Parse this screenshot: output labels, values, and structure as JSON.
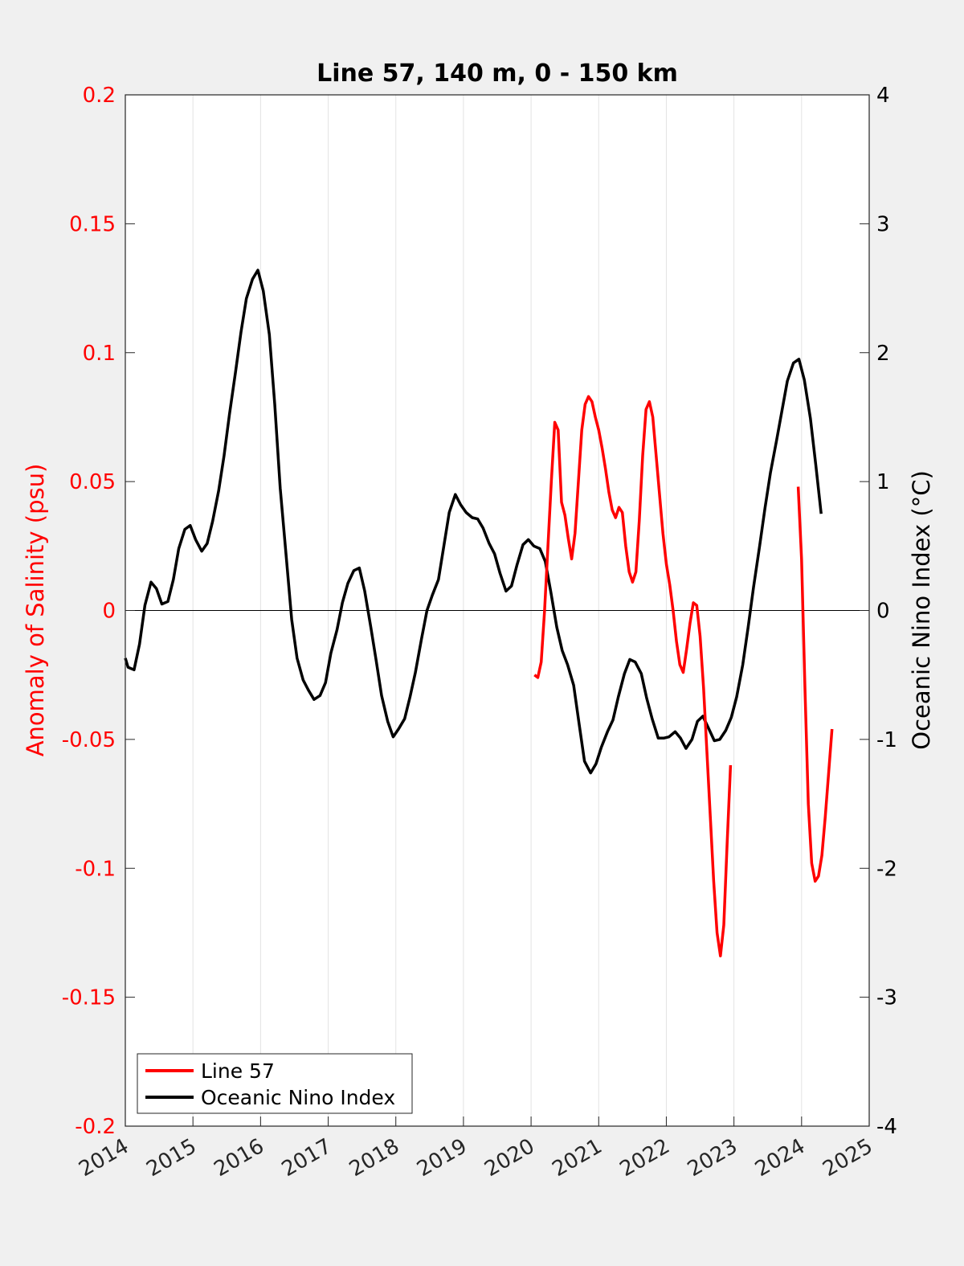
{
  "chart_data": {
    "type": "line",
    "title": "Line 57, 140 m, 0 - 150 km",
    "xlabel": "",
    "y_left_label": "Anomaly of Salinity (psu)",
    "y_right_label": "Oceanic Nino Index (°C)",
    "xlim": [
      2014,
      2025
    ],
    "y_left_lim": [
      -0.2,
      0.2
    ],
    "y_right_lim": [
      -4,
      4
    ],
    "x_ticks": [
      "2014",
      "2015",
      "2016",
      "2017",
      "2018",
      "2019",
      "2020",
      "2021",
      "2022",
      "2023",
      "2024",
      "2025"
    ],
    "y_left_ticks": [
      "-0.2",
      "-0.15",
      "-0.1",
      "-0.05",
      "0",
      "0.05",
      "0.1",
      "0.15",
      "0.2"
    ],
    "y_right_ticks": [
      "-4",
      "-3",
      "-2",
      "-1",
      "0",
      "1",
      "2",
      "3",
      "4"
    ],
    "x_grid": true,
    "zero_line": true,
    "legend_position": "bottom-left",
    "colors": {
      "line57": "#ff0000",
      "oni": "#000000",
      "left_axis": "#ff0000",
      "right_axis": "#000000"
    },
    "series": [
      {
        "name": "Line 57",
        "axis": "left",
        "segments": [
          [
            [
              2020.05,
              -0.025
            ],
            [
              2020.1,
              -0.026
            ],
            [
              2020.15,
              -0.02
            ],
            [
              2020.2,
              0.0
            ],
            [
              2020.25,
              0.025
            ],
            [
              2020.3,
              0.05
            ],
            [
              2020.35,
              0.073
            ],
            [
              2020.4,
              0.07
            ],
            [
              2020.45,
              0.042
            ],
            [
              2020.5,
              0.037
            ],
            [
              2020.55,
              0.028
            ],
            [
              2020.6,
              0.02
            ],
            [
              2020.65,
              0.03
            ],
            [
              2020.7,
              0.05
            ],
            [
              2020.75,
              0.07
            ],
            [
              2020.8,
              0.08
            ],
            [
              2020.85,
              0.083
            ],
            [
              2020.9,
              0.081
            ],
            [
              2020.95,
              0.075
            ],
            [
              2021.0,
              0.07
            ],
            [
              2021.05,
              0.063
            ],
            [
              2021.1,
              0.055
            ],
            [
              2021.15,
              0.046
            ],
            [
              2021.2,
              0.039
            ],
            [
              2021.25,
              0.036
            ],
            [
              2021.3,
              0.04
            ],
            [
              2021.35,
              0.038
            ],
            [
              2021.4,
              0.025
            ],
            [
              2021.45,
              0.015
            ],
            [
              2021.5,
              0.011
            ],
            [
              2021.55,
              0.015
            ],
            [
              2021.6,
              0.035
            ],
            [
              2021.65,
              0.06
            ],
            [
              2021.7,
              0.078
            ],
            [
              2021.75,
              0.081
            ],
            [
              2021.8,
              0.075
            ],
            [
              2021.85,
              0.06
            ],
            [
              2021.9,
              0.045
            ],
            [
              2021.95,
              0.03
            ],
            [
              2022.0,
              0.018
            ],
            [
              2022.05,
              0.01
            ],
            [
              2022.1,
              0.0
            ],
            [
              2022.15,
              -0.012
            ],
            [
              2022.2,
              -0.021
            ],
            [
              2022.25,
              -0.024
            ],
            [
              2022.3,
              -0.015
            ],
            [
              2022.35,
              -0.005
            ],
            [
              2022.4,
              0.003
            ],
            [
              2022.45,
              0.002
            ],
            [
              2022.5,
              -0.01
            ],
            [
              2022.55,
              -0.03
            ],
            [
              2022.6,
              -0.055
            ],
            [
              2022.65,
              -0.08
            ],
            [
              2022.7,
              -0.105
            ],
            [
              2022.75,
              -0.125
            ],
            [
              2022.8,
              -0.134
            ],
            [
              2022.85,
              -0.122
            ],
            [
              2022.9,
              -0.09
            ],
            [
              2022.95,
              -0.06
            ]
          ],
          [
            [
              2023.95,
              0.048
            ],
            [
              2024.0,
              0.02
            ],
            [
              2024.05,
              -0.03
            ],
            [
              2024.1,
              -0.075
            ],
            [
              2024.15,
              -0.098
            ],
            [
              2024.2,
              -0.105
            ],
            [
              2024.25,
              -0.103
            ],
            [
              2024.3,
              -0.095
            ],
            [
              2024.35,
              -0.08
            ],
            [
              2024.4,
              -0.063
            ],
            [
              2024.45,
              -0.046
            ]
          ]
        ]
      },
      {
        "name": "Oceanic Nino Index",
        "axis": "right",
        "segments": [
          [
            [
              2014.0,
              -0.37
            ],
            [
              2014.04,
              -0.44
            ],
            [
              2014.13,
              -0.46
            ],
            [
              2014.21,
              -0.26
            ],
            [
              2014.29,
              0.04
            ],
            [
              2014.38,
              0.22
            ],
            [
              2014.46,
              0.17
            ],
            [
              2014.54,
              0.05
            ],
            [
              2014.63,
              0.07
            ],
            [
              2014.71,
              0.24
            ],
            [
              2014.79,
              0.48
            ],
            [
              2014.88,
              0.63
            ],
            [
              2014.96,
              0.66
            ],
            [
              2015.04,
              0.55
            ],
            [
              2015.13,
              0.46
            ],
            [
              2015.21,
              0.52
            ],
            [
              2015.29,
              0.69
            ],
            [
              2015.38,
              0.93
            ],
            [
              2015.46,
              1.2
            ],
            [
              2015.54,
              1.52
            ],
            [
              2015.63,
              1.85
            ],
            [
              2015.71,
              2.16
            ],
            [
              2015.79,
              2.42
            ],
            [
              2015.88,
              2.57
            ],
            [
              2015.96,
              2.64
            ],
            [
              2016.04,
              2.48
            ],
            [
              2016.13,
              2.14
            ],
            [
              2016.21,
              1.6
            ],
            [
              2016.29,
              0.95
            ],
            [
              2016.38,
              0.41
            ],
            [
              2016.46,
              -0.07
            ],
            [
              2016.54,
              -0.37
            ],
            [
              2016.63,
              -0.54
            ],
            [
              2016.71,
              -0.62
            ],
            [
              2016.79,
              -0.69
            ],
            [
              2016.88,
              -0.66
            ],
            [
              2016.96,
              -0.56
            ],
            [
              2017.04,
              -0.33
            ],
            [
              2017.13,
              -0.15
            ],
            [
              2017.21,
              0.06
            ],
            [
              2017.29,
              0.21
            ],
            [
              2017.38,
              0.31
            ],
            [
              2017.46,
              0.33
            ],
            [
              2017.54,
              0.15
            ],
            [
              2017.63,
              -0.13
            ],
            [
              2017.71,
              -0.39
            ],
            [
              2017.79,
              -0.66
            ],
            [
              2017.88,
              -0.86
            ],
            [
              2017.96,
              -0.98
            ],
            [
              2018.04,
              -0.92
            ],
            [
              2018.13,
              -0.84
            ],
            [
              2018.21,
              -0.67
            ],
            [
              2018.29,
              -0.48
            ],
            [
              2018.38,
              -0.22
            ],
            [
              2018.46,
              0.0
            ],
            [
              2018.54,
              0.12
            ],
            [
              2018.63,
              0.24
            ],
            [
              2018.71,
              0.5
            ],
            [
              2018.79,
              0.76
            ],
            [
              2018.88,
              0.9
            ],
            [
              2018.96,
              0.82
            ],
            [
              2019.04,
              0.76
            ],
            [
              2019.13,
              0.72
            ],
            [
              2019.21,
              0.71
            ],
            [
              2019.29,
              0.64
            ],
            [
              2019.38,
              0.52
            ],
            [
              2019.46,
              0.44
            ],
            [
              2019.54,
              0.29
            ],
            [
              2019.63,
              0.15
            ],
            [
              2019.71,
              0.19
            ],
            [
              2019.79,
              0.35
            ],
            [
              2019.88,
              0.51
            ],
            [
              2019.96,
              0.55
            ],
            [
              2020.04,
              0.5
            ],
            [
              2020.13,
              0.48
            ],
            [
              2020.21,
              0.38
            ],
            [
              2020.29,
              0.15
            ],
            [
              2020.38,
              -0.13
            ],
            [
              2020.46,
              -0.31
            ],
            [
              2020.54,
              -0.42
            ],
            [
              2020.63,
              -0.58
            ],
            [
              2020.71,
              -0.88
            ],
            [
              2020.79,
              -1.17
            ],
            [
              2020.88,
              -1.26
            ],
            [
              2020.96,
              -1.19
            ],
            [
              2021.04,
              -1.06
            ],
            [
              2021.13,
              -0.94
            ],
            [
              2021.21,
              -0.85
            ],
            [
              2021.29,
              -0.67
            ],
            [
              2021.38,
              -0.49
            ],
            [
              2021.46,
              -0.38
            ],
            [
              2021.54,
              -0.4
            ],
            [
              2021.63,
              -0.49
            ],
            [
              2021.71,
              -0.68
            ],
            [
              2021.79,
              -0.84
            ],
            [
              2021.88,
              -0.99
            ],
            [
              2021.96,
              -0.99
            ],
            [
              2022.04,
              -0.98
            ],
            [
              2022.13,
              -0.94
            ],
            [
              2022.21,
              -0.99
            ],
            [
              2022.29,
              -1.07
            ],
            [
              2022.38,
              -1.0
            ],
            [
              2022.46,
              -0.86
            ],
            [
              2022.54,
              -0.82
            ],
            [
              2022.63,
              -0.92
            ],
            [
              2022.71,
              -1.01
            ],
            [
              2022.79,
              -1.0
            ],
            [
              2022.88,
              -0.93
            ],
            [
              2022.96,
              -0.83
            ],
            [
              2023.04,
              -0.67
            ],
            [
              2023.13,
              -0.42
            ],
            [
              2023.21,
              -0.13
            ],
            [
              2023.29,
              0.18
            ],
            [
              2023.38,
              0.5
            ],
            [
              2023.46,
              0.8
            ],
            [
              2023.54,
              1.07
            ],
            [
              2023.63,
              1.32
            ],
            [
              2023.71,
              1.55
            ],
            [
              2023.79,
              1.78
            ],
            [
              2023.88,
              1.92
            ],
            [
              2023.96,
              1.95
            ],
            [
              2024.04,
              1.79
            ],
            [
              2024.13,
              1.49
            ],
            [
              2024.21,
              1.13
            ],
            [
              2024.29,
              0.75
            ]
          ]
        ]
      }
    ]
  }
}
